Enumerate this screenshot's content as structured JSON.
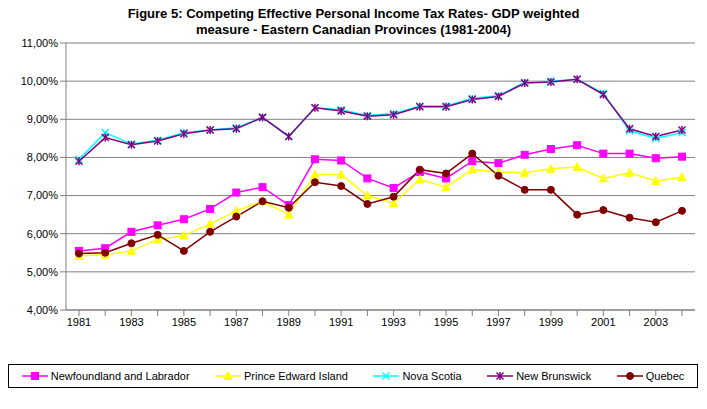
{
  "chart_data": {
    "type": "line",
    "title": "Figure 5: Competing Effective Personal Income Tax Rates- GDP weighted measure - Eastern Canadian Provinces (1981-2004)",
    "categories": [
      "1981",
      null,
      "1983",
      null,
      "1985",
      null,
      "1987",
      null,
      "1989",
      null,
      "1991",
      null,
      "1993",
      null,
      "1995",
      null,
      "1997",
      null,
      "1999",
      null,
      "2001",
      null,
      "2003",
      null
    ],
    "ylim": [
      4,
      11
    ],
    "yticks": [
      {
        "value": 4,
        "label": "4,00%"
      },
      {
        "value": 5,
        "label": "5,00%"
      },
      {
        "value": 6,
        "label": "6,00%"
      },
      {
        "value": 7,
        "label": "7,00%"
      },
      {
        "value": 8,
        "label": "8,00%"
      },
      {
        "value": 9,
        "label": "9,00%"
      },
      {
        "value": 10,
        "label": "10,00%"
      },
      {
        "value": 11,
        "label": "11,00%"
      }
    ],
    "grid": true,
    "legend": "bottom",
    "series": [
      {
        "name": "Newfoundland and Labrador",
        "color": "#ff00ff",
        "marker": "square",
        "values": [
          5.55,
          5.62,
          6.05,
          6.22,
          6.38,
          6.65,
          7.08,
          7.22,
          6.75,
          7.95,
          7.92,
          7.45,
          7.2,
          7.62,
          7.45,
          7.9,
          7.85,
          8.07,
          8.22,
          8.32,
          8.1,
          8.1,
          7.98,
          8.02
        ]
      },
      {
        "name": "Prince Edward Island",
        "color": "#ffff00",
        "marker": "triangle",
        "values": [
          5.42,
          5.45,
          5.55,
          5.85,
          5.95,
          6.25,
          6.6,
          6.85,
          6.5,
          7.55,
          7.55,
          7.0,
          6.8,
          7.42,
          7.22,
          7.68,
          7.62,
          7.6,
          7.7,
          7.75,
          7.45,
          7.6,
          7.38,
          7.48
        ]
      },
      {
        "name": "Nova Scotia",
        "color": "#00ffff",
        "marker": "x",
        "values": [
          7.95,
          8.65,
          8.35,
          8.45,
          8.65,
          8.72,
          8.78,
          9.05,
          8.55,
          9.3,
          9.25,
          9.1,
          9.15,
          9.35,
          9.35,
          9.55,
          9.62,
          9.97,
          10.0,
          10.05,
          9.68,
          8.7,
          8.5,
          8.65
        ]
      },
      {
        "name": "New Brunswick",
        "color": "#800080",
        "marker": "star",
        "values": [
          7.9,
          8.52,
          8.33,
          8.43,
          8.62,
          8.72,
          8.75,
          9.05,
          8.55,
          9.3,
          9.22,
          9.08,
          9.12,
          9.33,
          9.33,
          9.52,
          9.6,
          9.95,
          9.98,
          10.05,
          9.65,
          8.75,
          8.55,
          8.72
        ]
      },
      {
        "name": "Quebec",
        "color": "#800000",
        "marker": "circle",
        "values": [
          5.48,
          5.5,
          5.75,
          5.97,
          5.55,
          6.05,
          6.45,
          6.85,
          6.68,
          7.35,
          7.25,
          6.78,
          6.97,
          7.68,
          7.58,
          8.1,
          7.52,
          7.15,
          7.15,
          6.5,
          6.62,
          6.42,
          6.3,
          6.6
        ]
      }
    ]
  }
}
